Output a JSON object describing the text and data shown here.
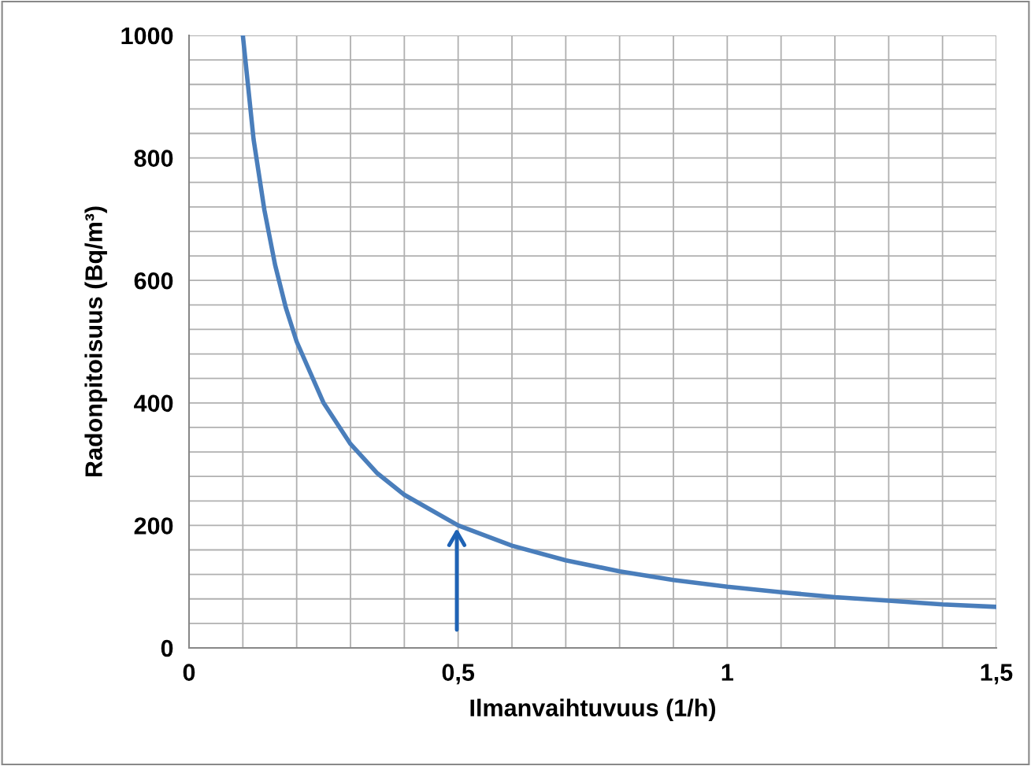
{
  "chart_data": {
    "type": "line",
    "xlabel": "Ilmanvaihtuvuus (1/h)",
    "ylabel": "Radonpitoisuus (Bq/m³)",
    "x": [
      0.1,
      0.12,
      0.14,
      0.16,
      0.18,
      0.2,
      0.25,
      0.3,
      0.35,
      0.4,
      0.5,
      0.6,
      0.7,
      0.8,
      0.9,
      1.0,
      1.1,
      1.2,
      1.3,
      1.4,
      1.5
    ],
    "series": [
      {
        "color": "#4a7ebb",
        "values": [
          1000,
          830,
          715,
          625,
          555,
          500,
          400,
          333,
          285,
          250,
          200,
          167,
          143,
          125,
          111,
          100,
          91,
          83,
          77,
          71,
          67
        ]
      }
    ],
    "xlim": [
      0,
      1.5
    ],
    "ylim": [
      0,
      1000
    ],
    "xticks": [
      0,
      {
        "value": 0.1,
        "label": null
      },
      {
        "value": 0.2,
        "label": null
      },
      {
        "value": 0.3,
        "label": null
      },
      {
        "value": 0.4,
        "label": null
      },
      {
        "value": 0.5,
        "label": "0,5"
      },
      {
        "value": 0.6,
        "label": null
      },
      {
        "value": 0.7,
        "label": null
      },
      {
        "value": 0.8,
        "label": null
      },
      {
        "value": 0.9,
        "label": null
      },
      1,
      {
        "value": 1.1,
        "label": null
      },
      {
        "value": 1.2,
        "label": null
      },
      {
        "value": 1.3,
        "label": null
      },
      {
        "value": 1.4,
        "label": null
      },
      {
        "value": 1.5,
        "label": "1,5"
      }
    ],
    "yticks": [
      0,
      {
        "value": 40,
        "label": null
      },
      {
        "value": 80,
        "label": null
      },
      {
        "value": 120,
        "label": null
      },
      {
        "value": 160,
        "label": null
      },
      200,
      {
        "value": 240,
        "label": null
      },
      {
        "value": 280,
        "label": null
      },
      {
        "value": 320,
        "label": null
      },
      {
        "value": 360,
        "label": null
      },
      400,
      {
        "value": 440,
        "label": null
      },
      {
        "value": 480,
        "label": null
      },
      {
        "value": 520,
        "label": null
      },
      {
        "value": 560,
        "label": null
      },
      600,
      {
        "value": 640,
        "label": null
      },
      {
        "value": 680,
        "label": null
      },
      {
        "value": 720,
        "label": null
      },
      {
        "value": 760,
        "label": null
      },
      800,
      {
        "value": 840,
        "label": null
      },
      {
        "value": 880,
        "label": null
      },
      {
        "value": 920,
        "label": null
      },
      {
        "value": 960,
        "label": null
      },
      1000
    ],
    "grid": true,
    "marker": "none",
    "line_style": "solid"
  }
}
